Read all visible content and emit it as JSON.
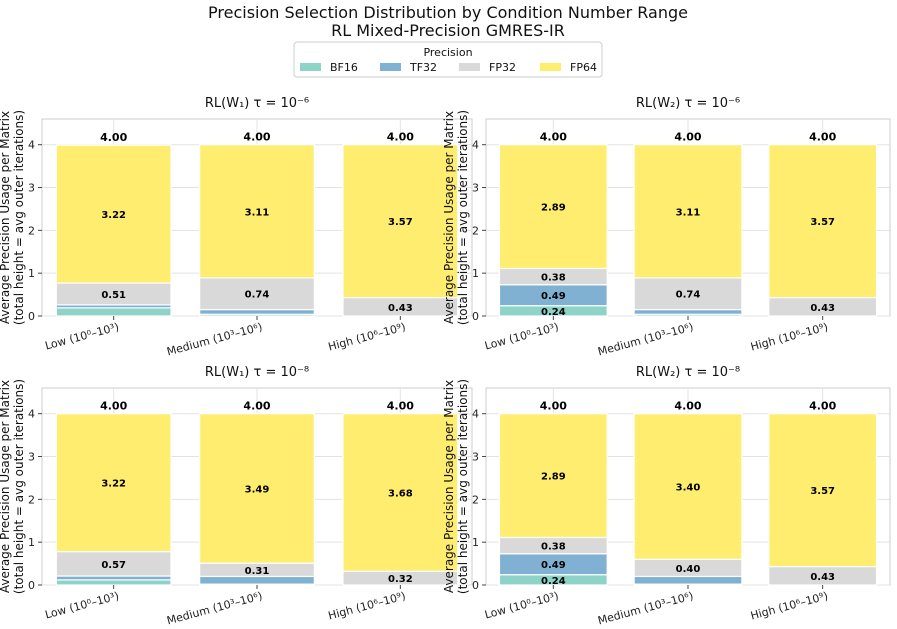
{
  "chart_data": {
    "type": "bar",
    "title": "Precision Selection Distribution by Condition Number Range",
    "subtitle": "RL Mixed-Precision GMRES-IR",
    "legend": {
      "title": "Precision",
      "position": "top-center",
      "entries": [
        {
          "name": "BF16",
          "color": "#8dd3c7"
        },
        {
          "name": "TF32",
          "color": "#80b1d3"
        },
        {
          "name": "FP32",
          "color": "#d9d9d9"
        },
        {
          "name": "FP64",
          "color": "#ffed6f"
        }
      ]
    },
    "ylabel_line1": "Average Precision Usage per Matrix",
    "ylabel_line2": "(total height = avg outer iterations)",
    "ylim": [
      0,
      4.6
    ],
    "yticks": [
      "0",
      "1",
      "2",
      "3",
      "4"
    ],
    "categories": [
      "Low (10⁰–10³)",
      "Medium (10³–10⁶)",
      "High (10⁶–10⁹)"
    ],
    "panels": [
      {
        "title": "RL(W₁) τ = 10⁻⁶",
        "bars": [
          {
            "BF16": 0.19,
            "TF32": 0.07,
            "FP32": 0.51,
            "FP64": 3.22,
            "total": "4.00",
            "labels": {
              "BF16": "",
              "TF32": "",
              "FP32": "0.51",
              "FP64": "3.22"
            }
          },
          {
            "BF16": 0.04,
            "TF32": 0.11,
            "FP32": 0.74,
            "FP64": 3.11,
            "total": "4.00",
            "labels": {
              "BF16": "",
              "TF32": "",
              "FP32": "0.74",
              "FP64": "3.11"
            }
          },
          {
            "BF16": 0.0,
            "TF32": 0.0,
            "FP32": 0.43,
            "FP64": 3.57,
            "total": "4.00",
            "labels": {
              "BF16": "",
              "TF32": "",
              "FP32": "0.43",
              "FP64": "3.57"
            }
          }
        ]
      },
      {
        "title": "RL(W₂) τ = 10⁻⁶",
        "bars": [
          {
            "BF16": 0.24,
            "TF32": 0.49,
            "FP32": 0.38,
            "FP64": 2.89,
            "total": "4.00",
            "labels": {
              "BF16": "0.24",
              "TF32": "0.49",
              "FP32": "0.38",
              "FP64": "2.89"
            }
          },
          {
            "BF16": 0.04,
            "TF32": 0.11,
            "FP32": 0.74,
            "FP64": 3.11,
            "total": "4.00",
            "labels": {
              "BF16": "",
              "TF32": "",
              "FP32": "0.74",
              "FP64": "3.11"
            }
          },
          {
            "BF16": 0.0,
            "TF32": 0.0,
            "FP32": 0.43,
            "FP64": 3.57,
            "total": "4.00",
            "labels": {
              "BF16": "",
              "TF32": "",
              "FP32": "0.43",
              "FP64": "3.57"
            }
          }
        ]
      },
      {
        "title": "RL(W₁) τ = 10⁻⁸",
        "bars": [
          {
            "BF16": 0.12,
            "TF32": 0.09,
            "FP32": 0.57,
            "FP64": 3.22,
            "total": "4.00",
            "labels": {
              "BF16": "",
              "TF32": "",
              "FP32": "0.57",
              "FP64": "3.22"
            }
          },
          {
            "BF16": 0.02,
            "TF32": 0.18,
            "FP32": 0.31,
            "FP64": 3.49,
            "total": "4.00",
            "labels": {
              "BF16": "",
              "TF32": "",
              "FP32": "0.31",
              "FP64": "3.49"
            }
          },
          {
            "BF16": 0.0,
            "TF32": 0.0,
            "FP32": 0.32,
            "FP64": 3.68,
            "total": "4.00",
            "labels": {
              "BF16": "",
              "TF32": "",
              "FP32": "0.32",
              "FP64": "3.68"
            }
          }
        ]
      },
      {
        "title": "RL(W₂) τ = 10⁻⁸",
        "bars": [
          {
            "BF16": 0.24,
            "TF32": 0.49,
            "FP32": 0.38,
            "FP64": 2.89,
            "total": "4.00",
            "labels": {
              "BF16": "0.24",
              "TF32": "0.49",
              "FP32": "0.38",
              "FP64": "2.89"
            }
          },
          {
            "BF16": 0.02,
            "TF32": 0.18,
            "FP32": 0.4,
            "FP64": 3.4,
            "total": "4.00",
            "labels": {
              "BF16": "",
              "TF32": "",
              "FP32": "0.40",
              "FP64": "3.40"
            }
          },
          {
            "BF16": 0.0,
            "TF32": 0.0,
            "FP32": 0.43,
            "FP64": 3.57,
            "total": "4.00",
            "labels": {
              "BF16": "",
              "TF32": "",
              "FP32": "0.43",
              "FP64": "3.57"
            }
          }
        ]
      }
    ]
  }
}
